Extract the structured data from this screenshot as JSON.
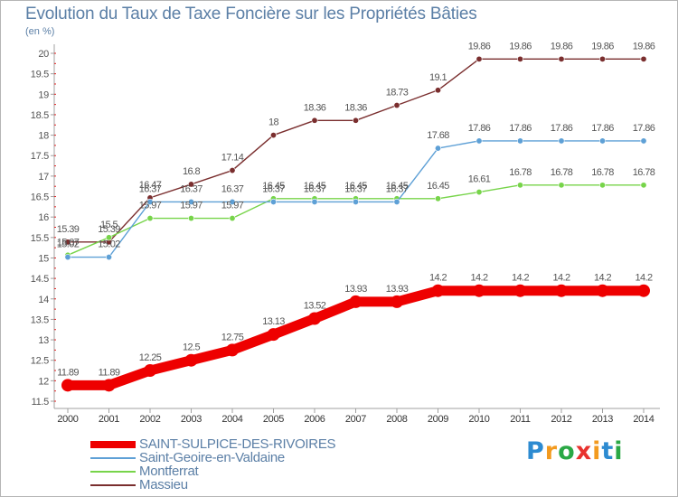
{
  "title": "Evolution du Taux de Taxe Foncière sur les Propriétés Bâties",
  "unit_label": "(en %)",
  "brand": "Proxiti",
  "chart_data": {
    "type": "line",
    "x": [
      "2000",
      "2001",
      "2002",
      "2003",
      "2004",
      "2005",
      "2006",
      "2007",
      "2008",
      "2009",
      "2010",
      "2011",
      "2012",
      "2013",
      "2014"
    ],
    "ylim": [
      11.5,
      20
    ],
    "yticks": [
      "11.5",
      "12",
      "12.5",
      "13",
      "13.5",
      "14",
      "14.5",
      "15",
      "15.5",
      "16",
      "16.5",
      "17",
      "17.5",
      "18",
      "18.5",
      "19",
      "19.5",
      "20"
    ],
    "grid": false,
    "legend_position": "bottom-left",
    "series": [
      {
        "name": "SAINT-SULPICE-DES-RIVOIRES",
        "color": "#ee0000",
        "values": [
          11.89,
          11.89,
          12.25,
          12.5,
          12.75,
          13.13,
          13.52,
          13.93,
          13.93,
          14.2,
          14.2,
          14.2,
          14.2,
          14.2,
          14.2
        ],
        "labels": [
          "11.89",
          "11.89",
          "12.25",
          "12.5",
          "12.75",
          "13.13",
          "13.52",
          "13.93",
          "13.93",
          "14.2",
          "14.2",
          "14.2",
          "14.2",
          "14.2",
          "14.2"
        ]
      },
      {
        "name": "Saint-Geoire-en-Valdaine",
        "color": "#5ea0d6",
        "values": [
          15.02,
          15.02,
          16.37,
          16.37,
          16.37,
          16.37,
          16.37,
          16.37,
          16.37,
          17.68,
          17.86,
          17.86,
          17.86,
          17.86,
          17.86
        ],
        "labels": [
          "15.02",
          "15.02",
          "16.37",
          "16.37",
          "16.37",
          "16.37",
          "16.37",
          "16.37",
          "16.37",
          "17.68",
          "17.86",
          "17.86",
          "17.86",
          "17.86",
          "17.86"
        ]
      },
      {
        "name": "Montferrat",
        "color": "#77d44a",
        "values": [
          15.07,
          15.5,
          15.97,
          15.97,
          15.97,
          16.45,
          16.45,
          16.45,
          16.45,
          16.45,
          16.61,
          16.78,
          16.78,
          16.78,
          16.78
        ],
        "labels": [
          "15.07",
          "15.5",
          "15.97",
          "15.97",
          "15.97",
          "16.45",
          "16.45",
          "16.45",
          "16.45",
          "16.45",
          "16.61",
          "16.78",
          "16.78",
          "16.78",
          "16.78"
        ]
      },
      {
        "name": "Massieu",
        "color": "#7a2e2e",
        "values": [
          15.39,
          15.39,
          16.47,
          16.8,
          17.14,
          18,
          18.36,
          18.36,
          18.73,
          19.1,
          19.86,
          19.86,
          19.86,
          19.86,
          19.86
        ],
        "labels": [
          "15.39",
          "15.39",
          "16.47",
          "16.8",
          "17.14",
          "18",
          "18.36",
          "18.36",
          "18.73",
          "19.1",
          "19.86",
          "19.86",
          "19.86",
          "19.86",
          "19.86"
        ]
      }
    ]
  }
}
